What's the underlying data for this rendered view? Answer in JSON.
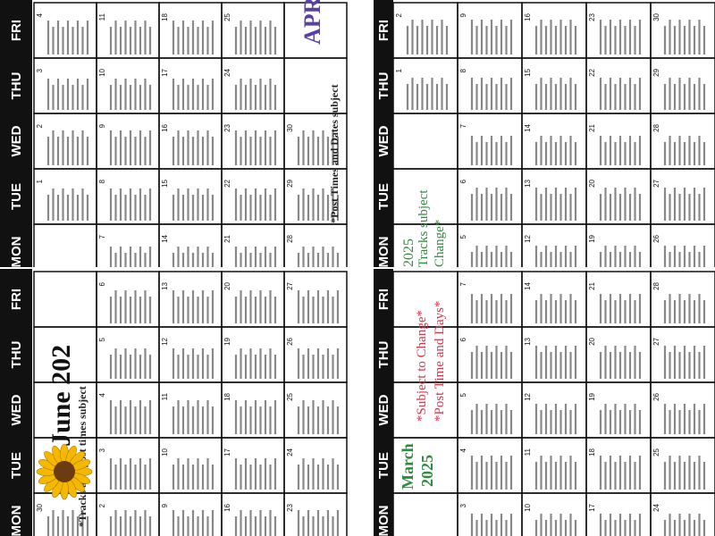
{
  "calendars": [
    {
      "days": [
        "MON",
        "TUE",
        "WED",
        "THU",
        "FRI"
      ],
      "weeks": [
        [
          null,
          1,
          2,
          3,
          4
        ],
        [
          7,
          8,
          9,
          10,
          11
        ],
        [
          14,
          15,
          16,
          17,
          18
        ],
        [
          21,
          22,
          23,
          24,
          25
        ],
        [
          28,
          29,
          30,
          null,
          null
        ]
      ],
      "labels": [
        "APR",
        "*Post Times and Dates subject"
      ]
    },
    {
      "days": [
        "MON",
        "TUE",
        "WED",
        "THU",
        "FRI"
      ],
      "weeks": [
        [
          null,
          null,
          null,
          1,
          2
        ],
        [
          5,
          6,
          7,
          8,
          9
        ],
        [
          12,
          13,
          14,
          15,
          16
        ],
        [
          19,
          20,
          21,
          22,
          23
        ],
        [
          26,
          27,
          28,
          29,
          30
        ]
      ],
      "labels": [
        "2025",
        "Tracks subject",
        "Change*"
      ]
    },
    {
      "days": [
        "MON",
        "TUE",
        "WED",
        "THU",
        "FRI"
      ],
      "weeks": [
        [
          30,
          null,
          null,
          null,
          null
        ],
        [
          2,
          3,
          4,
          5,
          6
        ],
        [
          9,
          10,
          11,
          12,
          13
        ],
        [
          16,
          17,
          18,
          19,
          20
        ],
        [
          23,
          24,
          25,
          26,
          27
        ]
      ],
      "labels": [
        "June 202",
        "*Tracks and post times subject"
      ]
    },
    {
      "days": [
        "MON",
        "TUE",
        "WED",
        "THU",
        "FRI"
      ],
      "weeks": [
        [
          null,
          null,
          null,
          null,
          null
        ],
        [
          3,
          4,
          5,
          6,
          7
        ],
        [
          10,
          11,
          12,
          13,
          14
        ],
        [
          17,
          18,
          19,
          20,
          21
        ],
        [
          24,
          25,
          26,
          27,
          28
        ]
      ],
      "labels": [
        "March",
        "2025",
        "*Subject to Change*",
        "*Post Time and Days*"
      ]
    }
  ]
}
